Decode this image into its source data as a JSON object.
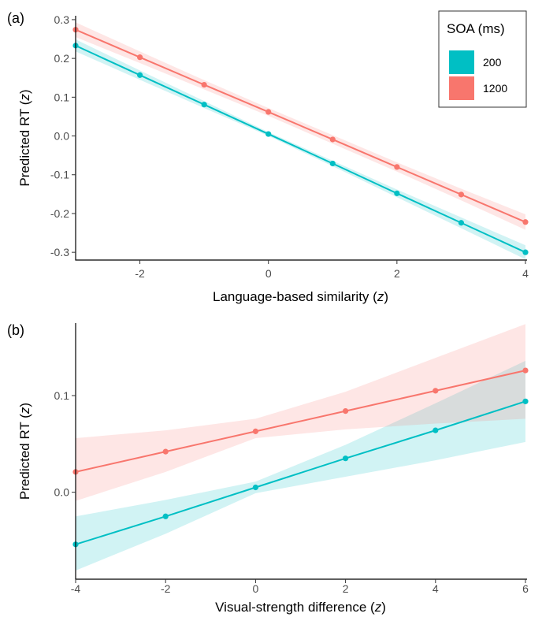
{
  "chart_data": [
    {
      "panel": "(a)",
      "type": "line",
      "xlabel": "Language-based similarity",
      "xlabel_italic": "z",
      "ylabel": "Predicted RT",
      "ylabel_italic": "z",
      "xlim": [
        -3,
        4
      ],
      "ylim": [
        -0.32,
        0.31
      ],
      "x_ticks": [
        -2,
        0,
        2,
        4
      ],
      "x_tick_labels": [
        "-2",
        "0",
        "2",
        "4"
      ],
      "y_ticks": [
        -0.3,
        -0.2,
        -0.1,
        0.0,
        0.1,
        0.2,
        0.3
      ],
      "y_tick_labels": [
        "-0.3",
        "-0.2",
        "-0.1",
        "0.0",
        "0.1",
        "0.2",
        "0.3"
      ],
      "x": [
        -3,
        -2,
        -1,
        0,
        1,
        2,
        3,
        4
      ],
      "series": [
        {
          "name": "200",
          "color": "#00bfc4",
          "fill": "#bdeff1",
          "values": [
            0.233,
            0.157,
            0.081,
            0.005,
            -0.071,
            -0.148,
            -0.224,
            -0.3
          ],
          "lower": [
            0.218,
            0.145,
            0.072,
            0.0,
            -0.078,
            -0.158,
            -0.238,
            -0.318
          ],
          "upper": [
            0.249,
            0.169,
            0.09,
            0.01,
            -0.064,
            -0.138,
            -0.21,
            -0.282
          ]
        },
        {
          "name": "1200",
          "color": "#f8766d",
          "fill": "#fdd7d4",
          "values": [
            0.274,
            0.203,
            0.132,
            0.062,
            -0.009,
            -0.08,
            -0.151,
            -0.222
          ],
          "lower": [
            0.255,
            0.188,
            0.12,
            0.052,
            -0.02,
            -0.092,
            -0.166,
            -0.242
          ],
          "upper": [
            0.293,
            0.218,
            0.144,
            0.072,
            0.002,
            -0.068,
            -0.136,
            -0.202
          ]
        }
      ],
      "legend": {
        "title": "SOA (ms)",
        "position": "top-right"
      },
      "grid": false
    },
    {
      "panel": "(b)",
      "type": "line",
      "xlabel": "Visual-strength difference",
      "xlabel_italic": "z",
      "ylabel": "Predicted RT",
      "ylabel_italic": "z",
      "xlim": [
        -4,
        6
      ],
      "ylim": [
        -0.09,
        0.175
      ],
      "x_ticks": [
        -4,
        -2,
        0,
        2,
        4,
        6
      ],
      "x_tick_labels": [
        "-4",
        "-2",
        "0",
        "2",
        "4",
        "6"
      ],
      "y_ticks": [
        0.0,
        0.1
      ],
      "y_tick_labels": [
        "0.0",
        "0.1"
      ],
      "x": [
        -4,
        -2,
        0,
        2,
        4,
        6
      ],
      "series": [
        {
          "name": "200",
          "color": "#00bfc4",
          "fill": "#bdeff1",
          "values": [
            -0.054,
            -0.025,
            0.005,
            0.035,
            0.064,
            0.094
          ],
          "lower": [
            -0.081,
            -0.043,
            -0.001,
            0.016,
            0.033,
            0.052
          ],
          "upper": [
            -0.025,
            -0.008,
            0.011,
            0.049,
            0.092,
            0.136
          ]
        },
        {
          "name": "1200",
          "color": "#f8766d",
          "fill": "#fdd7d4",
          "values": [
            0.021,
            0.042,
            0.063,
            0.084,
            0.105,
            0.126
          ],
          "lower": [
            -0.009,
            0.021,
            0.056,
            0.065,
            0.071,
            0.076
          ],
          "upper": [
            0.056,
            0.064,
            0.076,
            0.104,
            0.139,
            0.174
          ]
        }
      ],
      "grid": false
    }
  ]
}
